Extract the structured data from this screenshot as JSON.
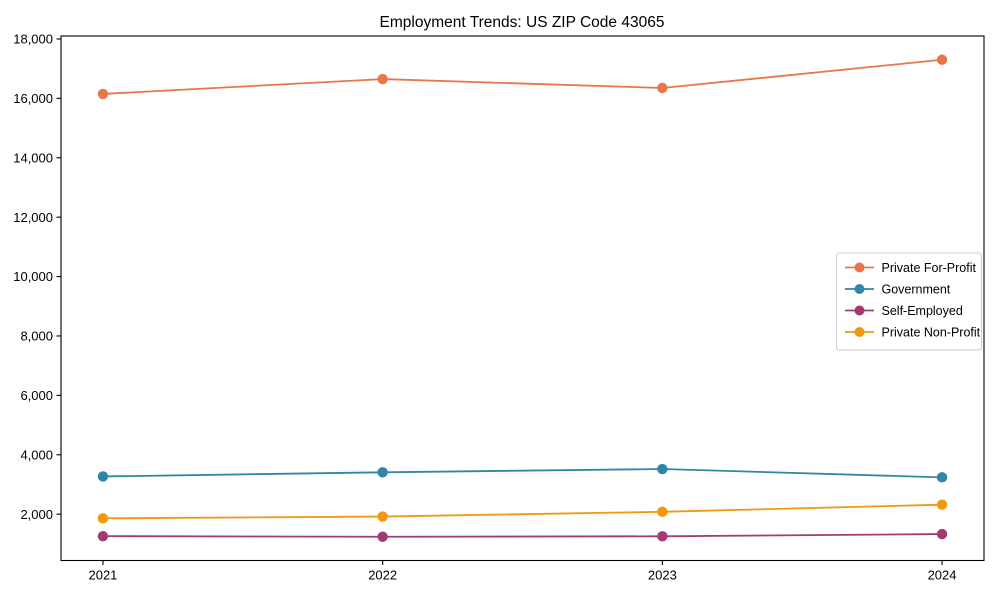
{
  "chart_data": {
    "type": "line",
    "title": "Employment Trends: US ZIP Code 43065",
    "x": [
      "2021",
      "2022",
      "2023",
      "2024"
    ],
    "series": [
      {
        "name": "Private For-Profit",
        "color": "#E8764B",
        "values": [
          16150,
          16650,
          16350,
          17300
        ]
      },
      {
        "name": "Government",
        "color": "#2E86A8",
        "values": [
          3270,
          3410,
          3520,
          3240
        ]
      },
      {
        "name": "Self-Employed",
        "color": "#A23B72",
        "values": [
          1260,
          1240,
          1255,
          1330
        ]
      },
      {
        "name": "Private Non-Profit",
        "color": "#F0980E",
        "values": [
          1860,
          1920,
          2080,
          2320
        ]
      }
    ],
    "xlabel": "",
    "ylabel": "",
    "ylim": [
      440,
      18100
    ],
    "yticks": [
      2000,
      4000,
      6000,
      8000,
      10000,
      12000,
      14000,
      16000,
      18000
    ],
    "ytick_format": "comma",
    "grid": false,
    "legend_position": "center right",
    "marker": "circle",
    "axis_color": "#000000",
    "legend_border_color": "#cccccc",
    "background": "#ffffff"
  }
}
